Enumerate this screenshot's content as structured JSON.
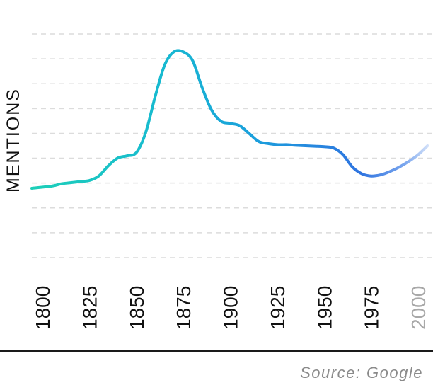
{
  "chart_data": {
    "type": "line",
    "title": "",
    "xlabel": "",
    "ylabel": "MENTIONS",
    "source": "Source: Google",
    "x_ticks": [
      "1800",
      "1825",
      "1850",
      "1875",
      "1900",
      "1925",
      "1950",
      "1975",
      "2000"
    ],
    "xlim": [
      1800,
      2000
    ],
    "ylim": [
      0,
      100
    ],
    "grid": "horizontal dashed",
    "series": [
      {
        "x": [
          1800,
          1805,
          1810,
          1815,
          1820,
          1825,
          1830,
          1835,
          1840,
          1845,
          1850,
          1855,
          1860,
          1865,
          1870,
          1875,
          1880,
          1885,
          1890,
          1895,
          1900,
          1905,
          1910,
          1915,
          1920,
          1925,
          1930,
          1935,
          1940,
          1945,
          1950,
          1955,
          1960,
          1965,
          1970,
          1975,
          1980,
          1985,
          1990,
          1995,
          2000,
          2005
        ],
        "y": [
          31,
          32,
          33,
          33.5,
          34,
          34.5,
          36.5,
          41,
          44.5,
          45.5,
          47,
          56,
          72,
          86,
          92,
          92,
          88,
          76,
          66,
          61,
          60,
          59,
          55.5,
          52,
          51,
          50.5,
          50.5,
          50.2,
          50,
          49.8,
          49.6,
          49,
          46,
          40.5,
          37.5,
          36.5,
          37,
          38.5,
          40.5,
          43,
          46,
          50
        ]
      }
    ]
  }
}
